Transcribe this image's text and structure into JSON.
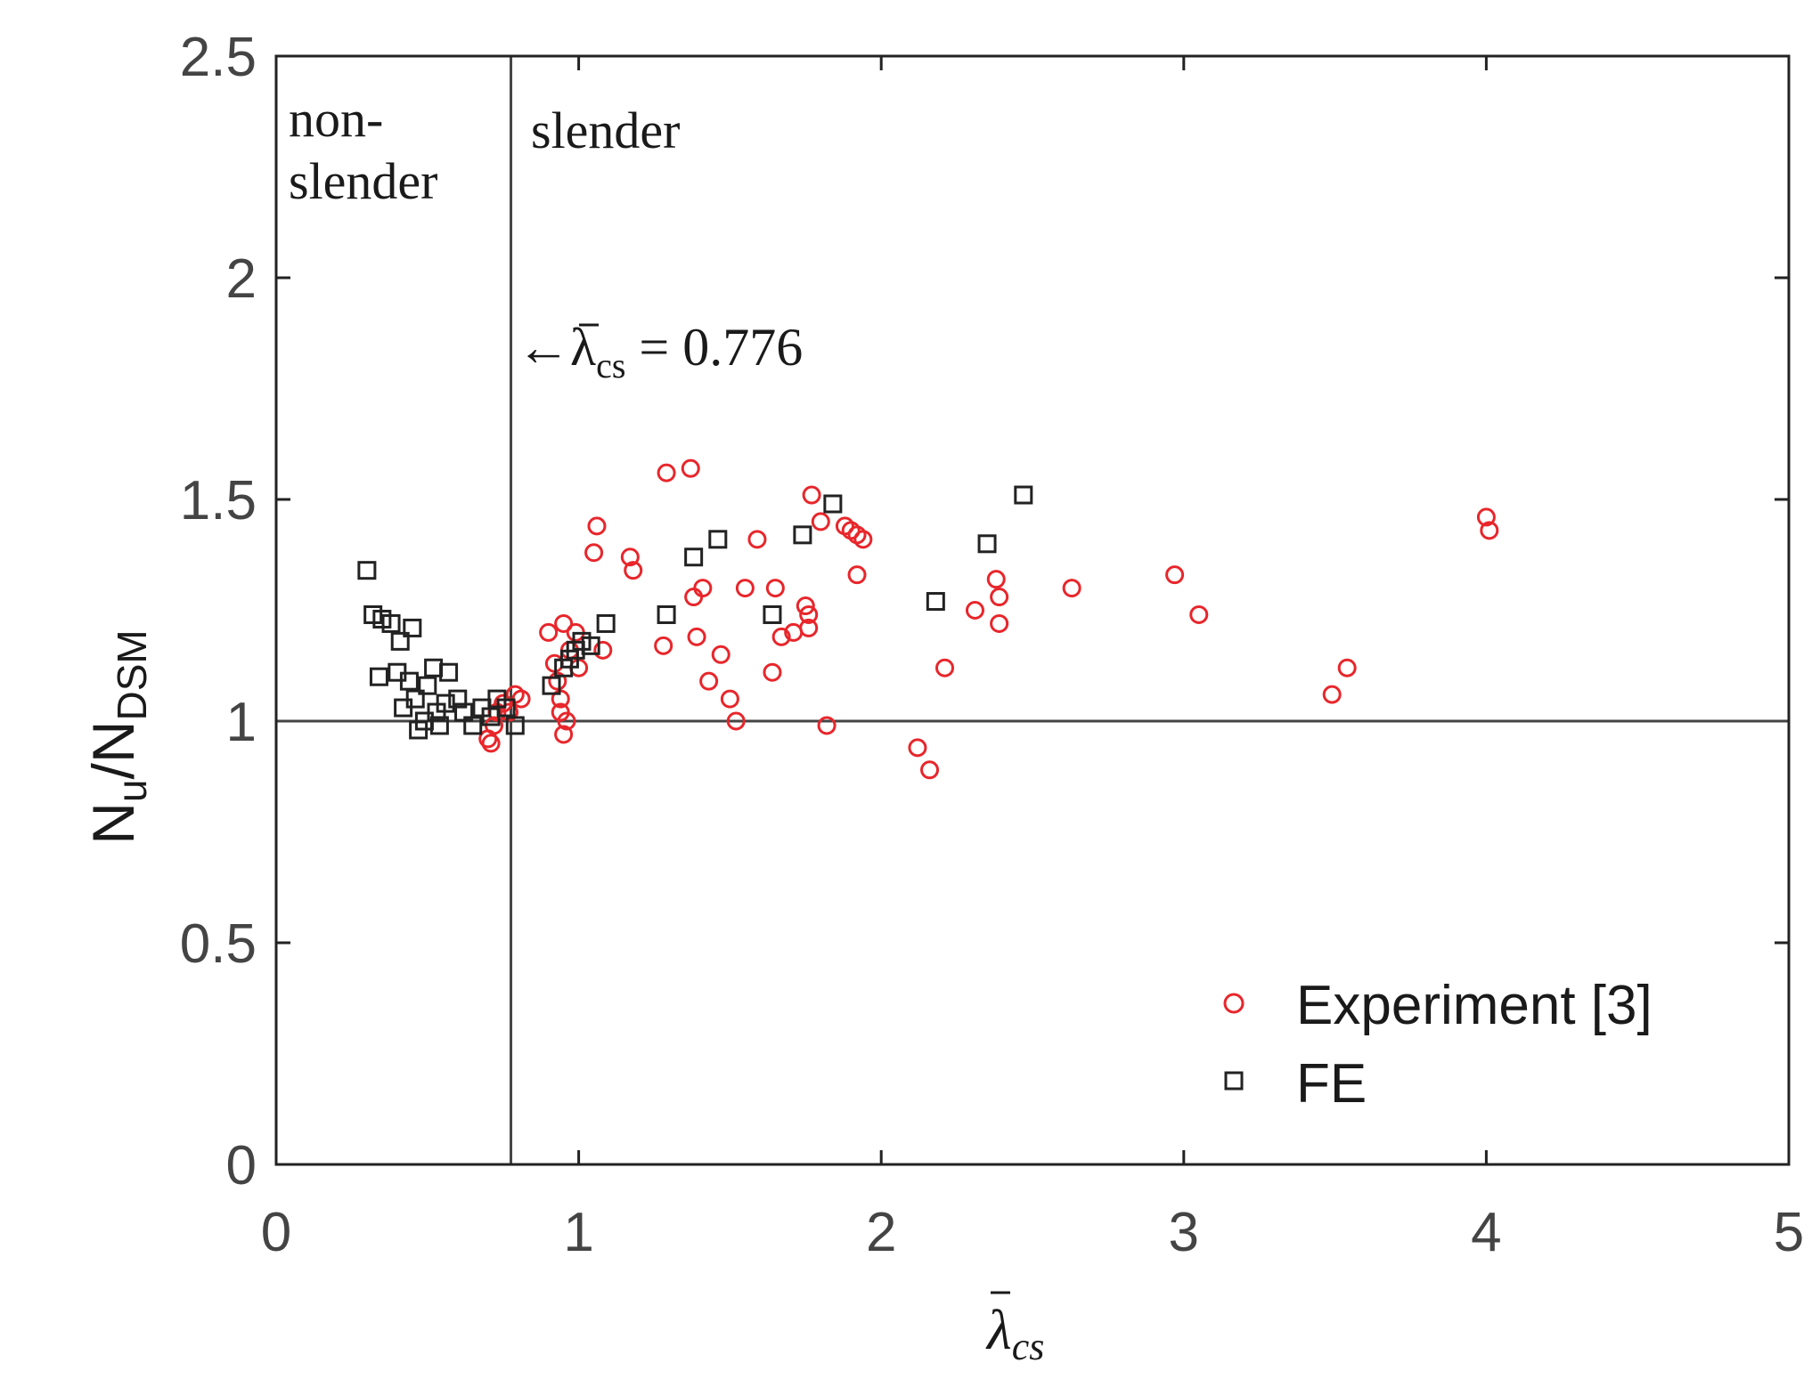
{
  "chart_data": {
    "type": "scatter",
    "title": "",
    "xlabel": {
      "symbol": "λ",
      "subscript": "cs"
    },
    "ylabel": {
      "main1": "N",
      "sub1": "u",
      "slash": "/",
      "main2": "N",
      "sub2": "DSM"
    },
    "xlim": [
      0,
      5
    ],
    "ylim": [
      0,
      2.5
    ],
    "xticks": [
      0,
      1,
      2,
      3,
      4,
      5
    ],
    "xtick_labels": [
      "0",
      "1",
      "2",
      "3",
      "4",
      "5"
    ],
    "yticks": [
      0,
      0.5,
      1,
      1.5,
      2,
      2.5
    ],
    "ytick_labels": [
      "0",
      "0.5",
      "1",
      "1.5",
      "2",
      "2.5"
    ],
    "grid": false,
    "legend_position": "bottom-right",
    "reference_lines": {
      "vertical_x": 0.776,
      "horizontal_y": 1
    },
    "annotations": {
      "region_left_line1": "non-",
      "region_left_line2": "slender",
      "region_right": "slender",
      "threshold_arrow": "←",
      "threshold_symbol": "λ",
      "threshold_subscript": "cs",
      "threshold_value": " = 0.776"
    },
    "series": [
      {
        "name": "Experiment [3]",
        "marker": "circle",
        "color": "#e8262b",
        "points": [
          [
            0.7,
            0.96
          ],
          [
            0.71,
            0.95
          ],
          [
            0.72,
            0.99
          ],
          [
            0.73,
            1.02
          ],
          [
            0.75,
            1.04
          ],
          [
            0.77,
            1.02
          ],
          [
            0.79,
            1.06
          ],
          [
            0.81,
            1.05
          ],
          [
            0.9,
            1.2
          ],
          [
            0.92,
            1.13
          ],
          [
            0.93,
            1.09
          ],
          [
            0.94,
            1.05
          ],
          [
            0.94,
            1.02
          ],
          [
            0.95,
            0.97
          ],
          [
            0.96,
            1.0
          ],
          [
            0.95,
            1.22
          ],
          [
            0.97,
            1.16
          ],
          [
            0.99,
            1.2
          ],
          [
            1.0,
            1.12
          ],
          [
            1.05,
            1.38
          ],
          [
            1.06,
            1.44
          ],
          [
            1.08,
            1.16
          ],
          [
            1.17,
            1.37
          ],
          [
            1.18,
            1.34
          ],
          [
            1.28,
            1.17
          ],
          [
            1.29,
            1.56
          ],
          [
            1.37,
            1.57
          ],
          [
            1.38,
            1.28
          ],
          [
            1.39,
            1.19
          ],
          [
            1.41,
            1.3
          ],
          [
            1.43,
            1.09
          ],
          [
            1.47,
            1.15
          ],
          [
            1.5,
            1.05
          ],
          [
            1.52,
            1.0
          ],
          [
            1.55,
            1.3
          ],
          [
            1.59,
            1.41
          ],
          [
            1.64,
            1.11
          ],
          [
            1.65,
            1.3
          ],
          [
            1.67,
            1.19
          ],
          [
            1.71,
            1.2
          ],
          [
            1.75,
            1.26
          ],
          [
            1.76,
            1.21
          ],
          [
            1.76,
            1.24
          ],
          [
            1.77,
            1.51
          ],
          [
            1.8,
            1.45
          ],
          [
            1.82,
            0.99
          ],
          [
            1.88,
            1.44
          ],
          [
            1.9,
            1.43
          ],
          [
            1.92,
            1.33
          ],
          [
            1.92,
            1.42
          ],
          [
            1.94,
            1.41
          ],
          [
            2.12,
            0.94
          ],
          [
            2.16,
            0.89
          ],
          [
            2.21,
            1.12
          ],
          [
            2.31,
            1.25
          ],
          [
            2.38,
            1.32
          ],
          [
            2.39,
            1.28
          ],
          [
            2.39,
            1.22
          ],
          [
            2.63,
            1.3
          ],
          [
            2.97,
            1.33
          ],
          [
            3.05,
            1.24
          ],
          [
            3.49,
            1.06
          ],
          [
            3.54,
            1.12
          ],
          [
            4.0,
            1.46
          ],
          [
            4.01,
            1.43
          ]
        ]
      },
      {
        "name": "FE",
        "marker": "square",
        "color": "#222222",
        "points": [
          [
            0.3,
            1.34
          ],
          [
            0.32,
            1.24
          ],
          [
            0.34,
            1.1
          ],
          [
            0.35,
            1.23
          ],
          [
            0.38,
            1.22
          ],
          [
            0.4,
            1.11
          ],
          [
            0.41,
            1.18
          ],
          [
            0.42,
            1.03
          ],
          [
            0.44,
            1.09
          ],
          [
            0.45,
            1.21
          ],
          [
            0.46,
            1.05
          ],
          [
            0.47,
            0.98
          ],
          [
            0.49,
            1.0
          ],
          [
            0.5,
            1.08
          ],
          [
            0.52,
            1.12
          ],
          [
            0.53,
            1.02
          ],
          [
            0.54,
            0.99
          ],
          [
            0.56,
            1.04
          ],
          [
            0.57,
            1.11
          ],
          [
            0.6,
            1.05
          ],
          [
            0.62,
            1.02
          ],
          [
            0.65,
            0.99
          ],
          [
            0.68,
            1.03
          ],
          [
            0.71,
            1.01
          ],
          [
            0.73,
            1.05
          ],
          [
            0.76,
            1.03
          ],
          [
            0.79,
            0.99
          ],
          [
            0.91,
            1.08
          ],
          [
            0.95,
            1.12
          ],
          [
            0.97,
            1.14
          ],
          [
            0.99,
            1.16
          ],
          [
            1.01,
            1.18
          ],
          [
            1.04,
            1.17
          ],
          [
            1.09,
            1.22
          ],
          [
            1.29,
            1.24
          ],
          [
            1.38,
            1.37
          ],
          [
            1.46,
            1.41
          ],
          [
            1.64,
            1.24
          ],
          [
            1.74,
            1.42
          ],
          [
            1.84,
            1.49
          ],
          [
            2.18,
            1.27
          ],
          [
            2.35,
            1.4
          ],
          [
            2.47,
            1.51
          ]
        ]
      }
    ]
  }
}
